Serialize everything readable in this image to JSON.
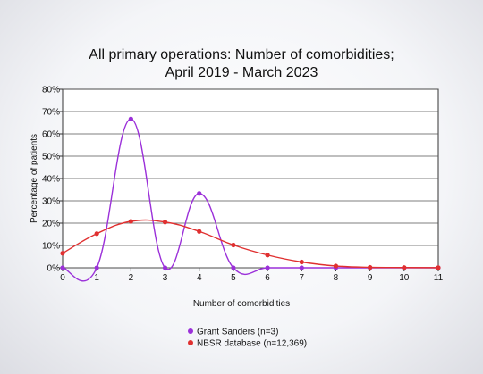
{
  "chart_data": {
    "type": "line",
    "title_lines": [
      "All primary operations: Number of comorbidities;",
      "April 2019 - March 2023"
    ],
    "xlabel": "Number of comorbidities",
    "ylabel": "Percentage of patients",
    "x": [
      0,
      1,
      2,
      3,
      4,
      5,
      6,
      7,
      8,
      9,
      10,
      11
    ],
    "xlim": [
      0,
      11
    ],
    "ylim": [
      0,
      80
    ],
    "ytick_step": 10,
    "y_tick_suffix": "%",
    "grid": "horizontal",
    "legend_position": "bottom",
    "series": [
      {
        "name": "Grant Sanders (n=3)",
        "color": "#9b30d9",
        "values": [
          0,
          0,
          66.7,
          0,
          33.3,
          0,
          0,
          0,
          0,
          0,
          0,
          0
        ]
      },
      {
        "name": "NBSR database (n=12,369)",
        "color": "#e03030",
        "values": [
          6.5,
          15.3,
          20.8,
          20.5,
          16.3,
          10.2,
          5.7,
          2.6,
          0.8,
          0.2,
          0.1,
          0.05
        ]
      }
    ]
  }
}
